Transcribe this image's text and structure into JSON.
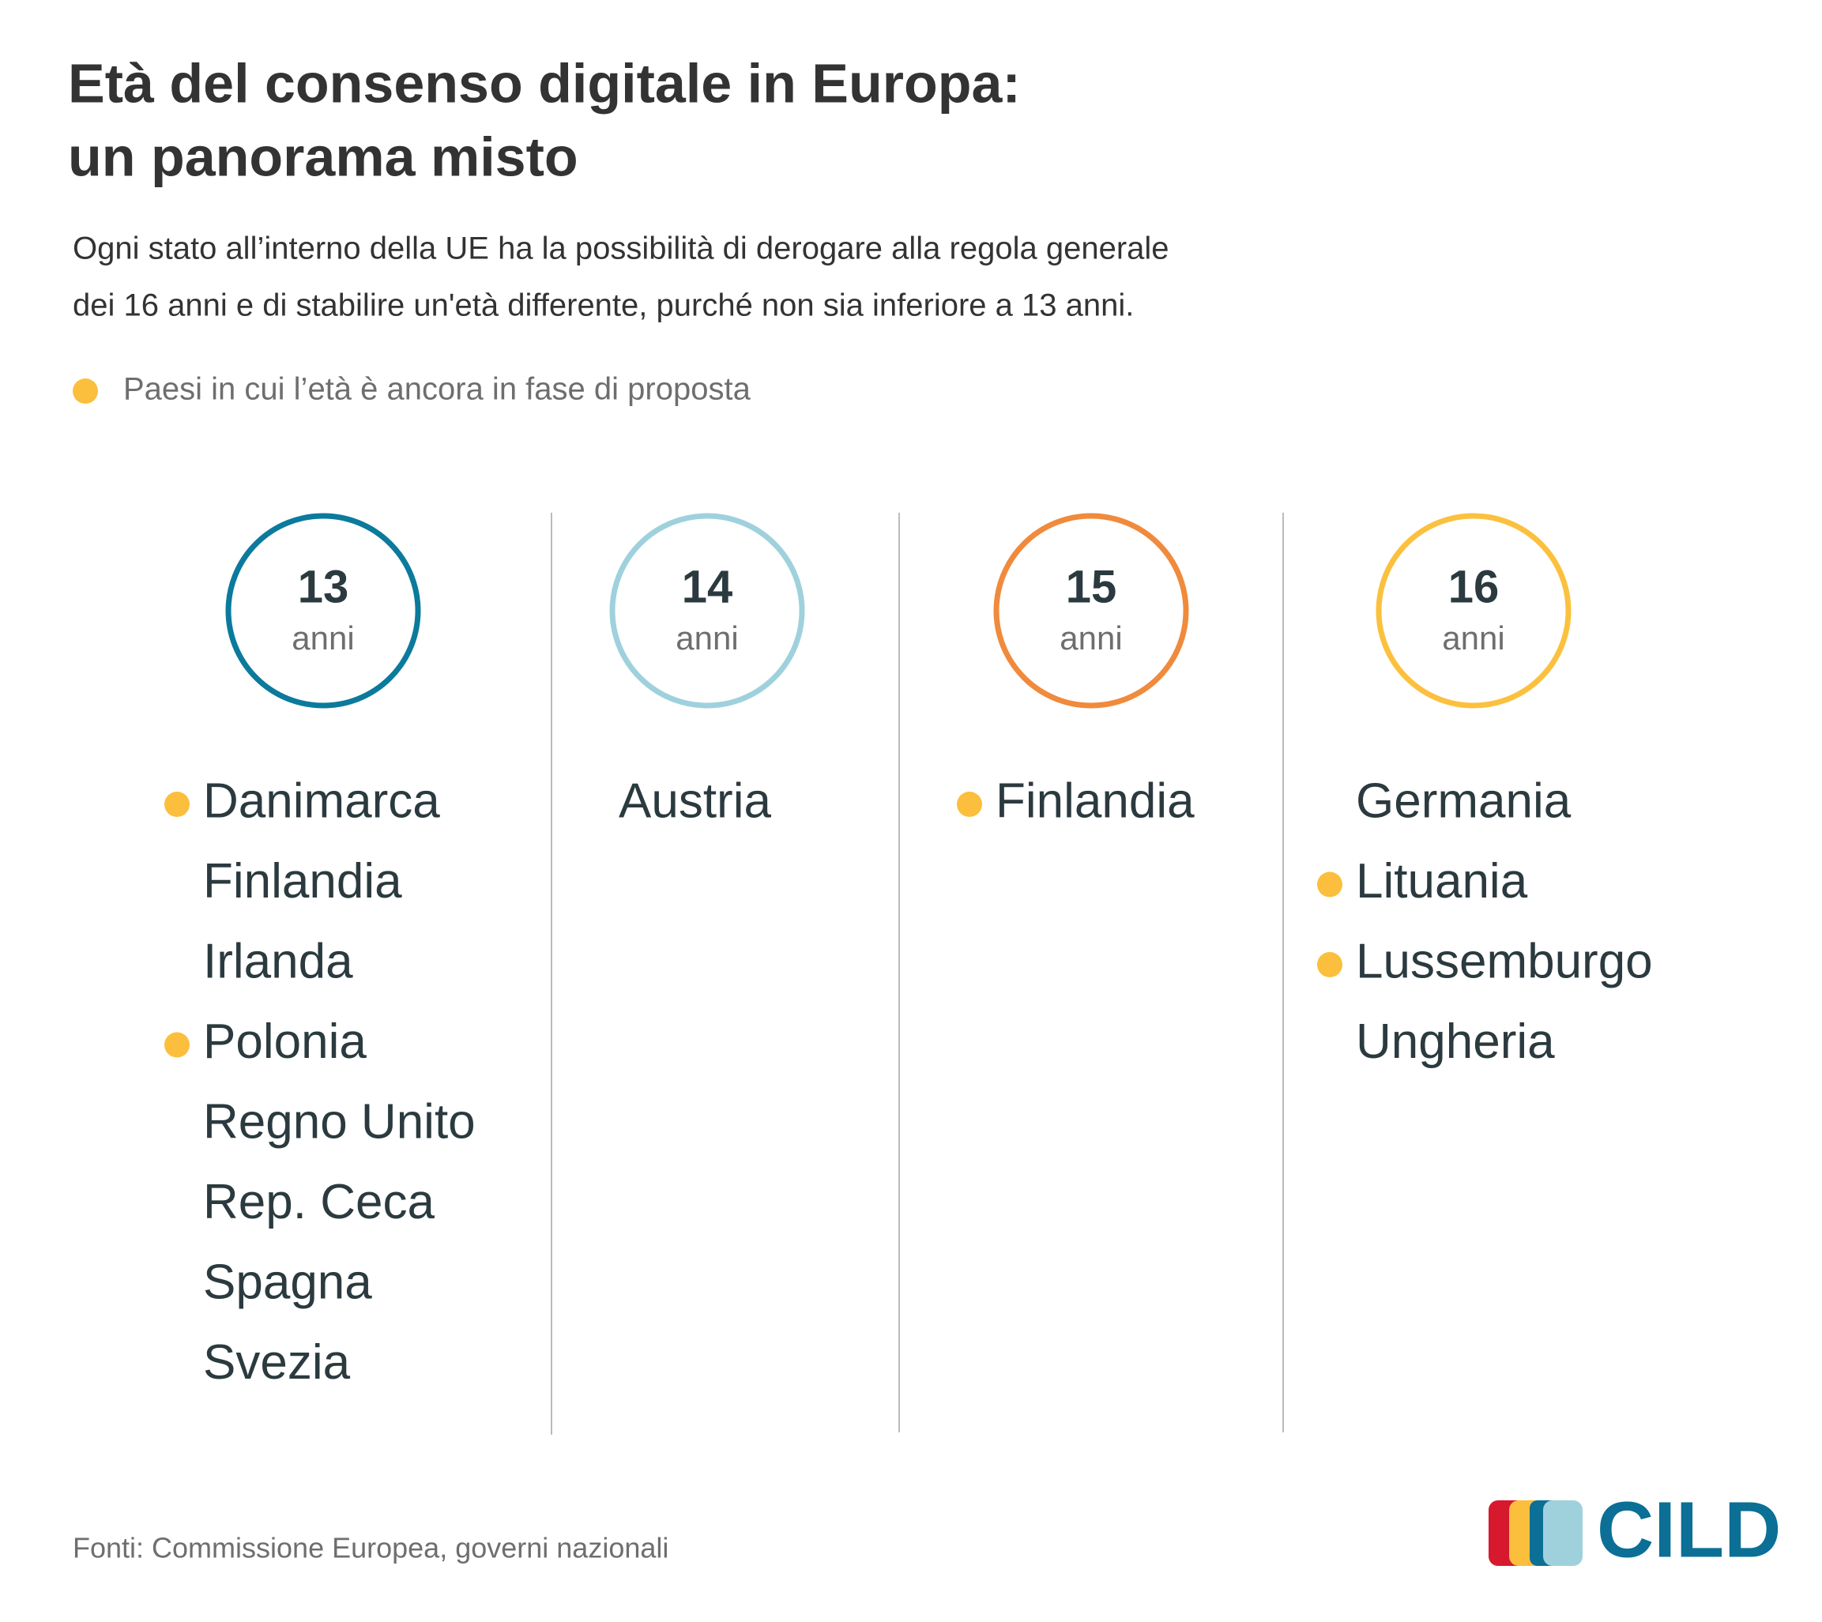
{
  "title": [
    "Età del consenso digitale in Europa:",
    "un panorama misto"
  ],
  "subtitle": [
    "Ogni stato all’interno della UE ha la possibilità di derogare alla regola generale",
    "dei 16 anni e di stabilire un'età differente, purché non sia inferiore a 13 anni."
  ],
  "legend": {
    "label": "Paesi in cui l’età è ancora in fase di proposta",
    "color": "#fbbf3d"
  },
  "columns": [
    {
      "age": "13",
      "unit": "anni",
      "color": "#0b7a9c",
      "countries": [
        {
          "name": "Danimarca",
          "proposed": true
        },
        {
          "name": "Finlandia",
          "proposed": false
        },
        {
          "name": "Irlanda",
          "proposed": false
        },
        {
          "name": "Polonia",
          "proposed": true
        },
        {
          "name": "Regno Unito",
          "proposed": false
        },
        {
          "name": "Rep. Ceca",
          "proposed": false
        },
        {
          "name": "Spagna",
          "proposed": false
        },
        {
          "name": "Svezia",
          "proposed": false
        }
      ]
    },
    {
      "age": "14",
      "unit": "anni",
      "color": "#9fd1dd",
      "countries": [
        {
          "name": "Austria",
          "proposed": false
        }
      ]
    },
    {
      "age": "15",
      "unit": "anni",
      "color": "#f08a3c",
      "countries": [
        {
          "name": "Finlandia",
          "proposed": true
        }
      ]
    },
    {
      "age": "16",
      "unit": "anni",
      "color": "#fbc13e",
      "countries": [
        {
          "name": "Germania",
          "proposed": false
        },
        {
          "name": "Lituania",
          "proposed": true
        },
        {
          "name": "Lussemburgo",
          "proposed": true
        },
        {
          "name": "Ungheria",
          "proposed": false
        }
      ]
    }
  ],
  "footer": {
    "source": "Fonti: Commissione Europea, governi nazionali",
    "logo": "CILD"
  }
}
